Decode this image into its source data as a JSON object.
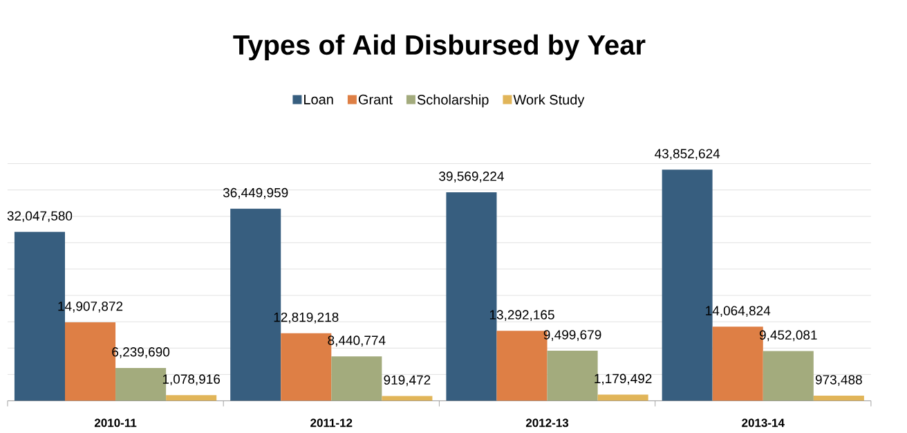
{
  "chart_data": {
    "type": "bar",
    "title": "Types of Aid Disbursed by Year",
    "categories": [
      "2010-11",
      "2011-12",
      "2012-13",
      "2013-14"
    ],
    "series": [
      {
        "name": "Loan",
        "color": "#375e7f",
        "values": [
          32047580,
          36449959,
          39569224,
          43852624
        ],
        "value_labels": [
          "32,047,580",
          "36,449,959",
          "39,569,224",
          "43,852,624"
        ]
      },
      {
        "name": "Grant",
        "color": "#de7f45",
        "values": [
          14907872,
          12819218,
          13292165,
          14064824
        ],
        "value_labels": [
          "14,907,872",
          "12,819,218",
          "13,292,165",
          "14,064,824"
        ]
      },
      {
        "name": "Scholarship",
        "color": "#a3ab7d",
        "values": [
          6239690,
          8440774,
          9499679,
          9452081
        ],
        "value_labels": [
          "6,239,690",
          "8,440,774",
          "9,499,679",
          "9,452,081"
        ]
      },
      {
        "name": "Work Study",
        "color": "#e1b559",
        "values": [
          1078916,
          919472,
          1179492,
          973488
        ],
        "value_labels": [
          "1,078,916",
          "919,472",
          "1,179,492",
          "973,488"
        ]
      }
    ],
    "tick_labels": "x",
    "grid": "y",
    "legend": "top"
  }
}
